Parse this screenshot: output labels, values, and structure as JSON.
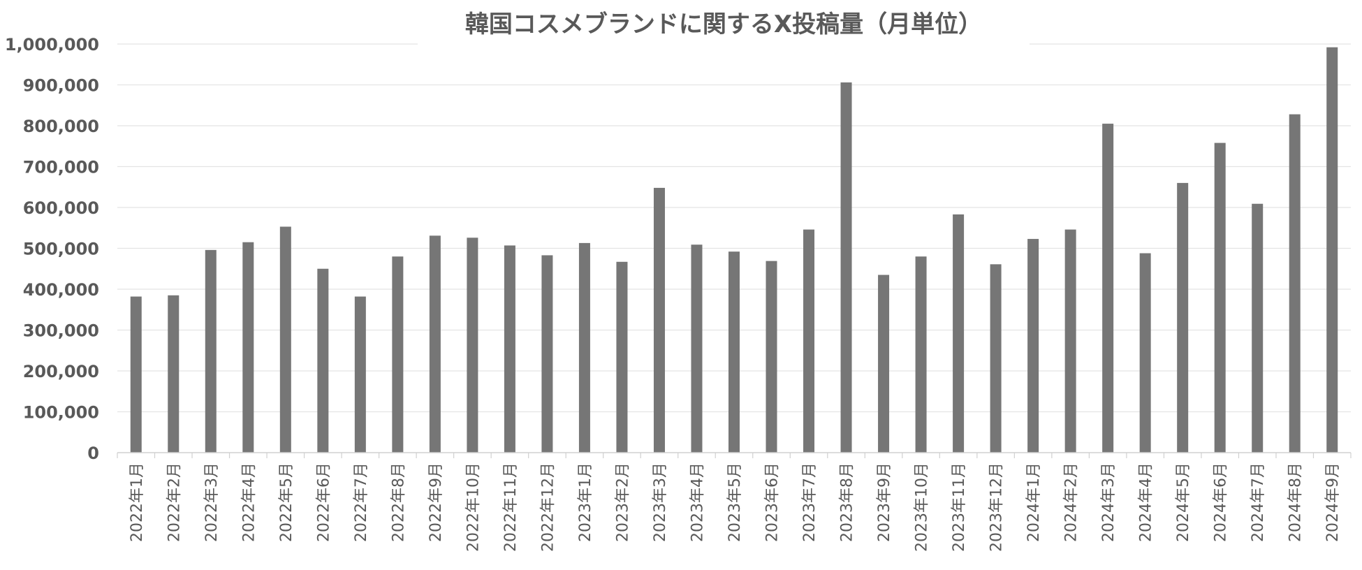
{
  "chart_data": {
    "type": "bar",
    "title": "韓国コスメブランドに関するX投稿量（月単位）",
    "xlabel": "",
    "ylabel": "",
    "ylim": [
      0,
      1000000
    ],
    "yticks": [
      "0",
      "100,000",
      "200,000",
      "300,000",
      "400,000",
      "500,000",
      "600,000",
      "700,000",
      "800,000",
      "900,000",
      "1,000,000"
    ],
    "grid": true,
    "legend": "none",
    "bar_color": "#767676",
    "categories": [
      "2022年1月",
      "2022年2月",
      "2022年3月",
      "2022年4月",
      "2022年5月",
      "2022年6月",
      "2022年7月",
      "2022年8月",
      "2022年9月",
      "2022年10月",
      "2022年11月",
      "2022年12月",
      "2023年1月",
      "2023年2月",
      "2023年3月",
      "2023年4月",
      "2023年5月",
      "2023年6月",
      "2023年7月",
      "2023年8月",
      "2023年9月",
      "2023年10月",
      "2023年11月",
      "2023年12月",
      "2024年1月",
      "2024年2月",
      "2024年3月",
      "2024年4月",
      "2024年5月",
      "2024年6月",
      "2024年7月",
      "2024年8月",
      "2024年9月"
    ],
    "values": [
      382000,
      385000,
      496000,
      515000,
      553000,
      450000,
      382000,
      480000,
      531000,
      526000,
      507000,
      483000,
      513000,
      467000,
      648000,
      509000,
      492000,
      469000,
      546000,
      906000,
      435000,
      480000,
      583000,
      461000,
      523000,
      546000,
      805000,
      488000,
      660000,
      758000,
      609000,
      828000,
      992000
    ]
  }
}
